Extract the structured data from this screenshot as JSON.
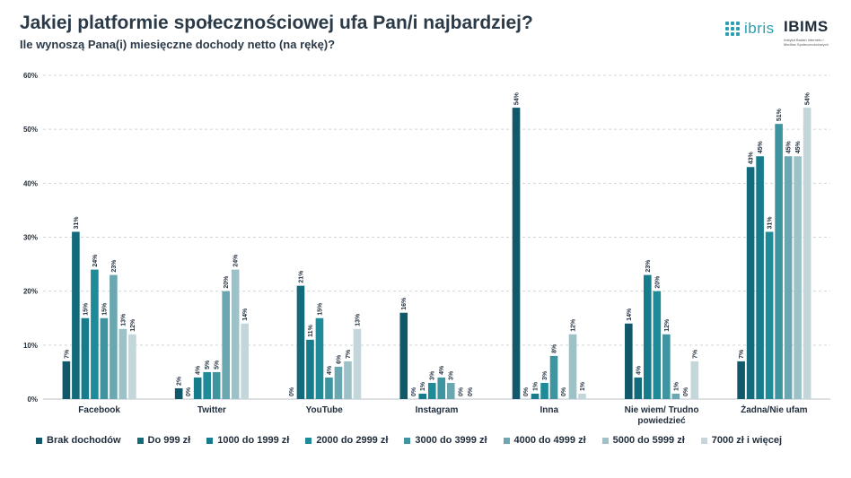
{
  "title": "Jakiej platformie społecznościowej ufa Pan/i najbardziej?",
  "subtitle": "Ile wynoszą Pana(i) miesięczne dochody netto (na rękę)?",
  "logos": {
    "ibris": "ibris",
    "ibims": "IBIMS",
    "ibims_caption": "Instytut Badań Internetu i Mediów Społecznościowych"
  },
  "chart_data": {
    "type": "bar",
    "categories": [
      "Facebook",
      "Twitter",
      "YouTube",
      "Instagram",
      "Inna",
      "Nie wiem/ Trudno powiedzieć",
      "Żadna/Nie ufam"
    ],
    "y_ticks": [
      "0%",
      "10%",
      "20%",
      "30%",
      "40%",
      "50%",
      "60%"
    ],
    "ylim": [
      0,
      60
    ],
    "grid": true,
    "legend_position": "bottom",
    "series": [
      {
        "name": "Brak dochodów",
        "color": "#10586a",
        "values": [
          7,
          2,
          0,
          16,
          54,
          14,
          7
        ],
        "labels": [
          "7%",
          "2%",
          "0%",
          "16%",
          "54%",
          "14%",
          "7%"
        ]
      },
      {
        "name": "Do 999 zł",
        "color": "#136a7b",
        "values": [
          31,
          0,
          21,
          0,
          0,
          4,
          43
        ],
        "labels": [
          "31%",
          "0%",
          "21%",
          "0%",
          "0%",
          "4%",
          "43%"
        ]
      },
      {
        "name": "1000 do 1999 zł",
        "color": "#167c8b",
        "values": [
          15,
          4,
          11,
          1,
          1,
          23,
          45
        ],
        "labels": [
          "15%",
          "4%",
          "11%",
          "1%",
          "1%",
          "23%",
          "45%"
        ]
      },
      {
        "name": "2000 do 2999 zł",
        "color": "#1f8b98",
        "values": [
          24,
          5,
          15,
          3,
          3,
          20,
          31
        ],
        "labels": [
          "24%",
          "5%",
          "15%",
          "3%",
          "3%",
          "20%",
          "31%"
        ]
      },
      {
        "name": "3000 do 3999 zł",
        "color": "#3e95a0",
        "values": [
          15,
          5,
          4,
          4,
          8,
          12,
          51
        ],
        "labels": [
          "15%",
          "5%",
          "4%",
          "4%",
          "8%",
          "12%",
          "51%"
        ]
      },
      {
        "name": "4000 do 4999 zł",
        "color": "#6aa7b0",
        "values": [
          23,
          20,
          6,
          3,
          0,
          1,
          45
        ],
        "labels": [
          "23%",
          "20%",
          "6%",
          "3%",
          "0%",
          "1%",
          "45%"
        ]
      },
      {
        "name": "5000 do 5999 zł",
        "color": "#9cc1c7",
        "values": [
          13,
          24,
          7,
          0,
          12,
          0,
          45
        ],
        "labels": [
          "13%",
          "24%",
          "7%",
          "0%",
          "12%",
          "0%",
          "45%"
        ]
      },
      {
        "name": "7000 zł i więcej",
        "color": "#c3d7da",
        "values": [
          12,
          14,
          13,
          0,
          1,
          7,
          54
        ],
        "labels": [
          "12%",
          "14%",
          "13%",
          "0%",
          "1%",
          "7%",
          "54%"
        ]
      }
    ]
  }
}
